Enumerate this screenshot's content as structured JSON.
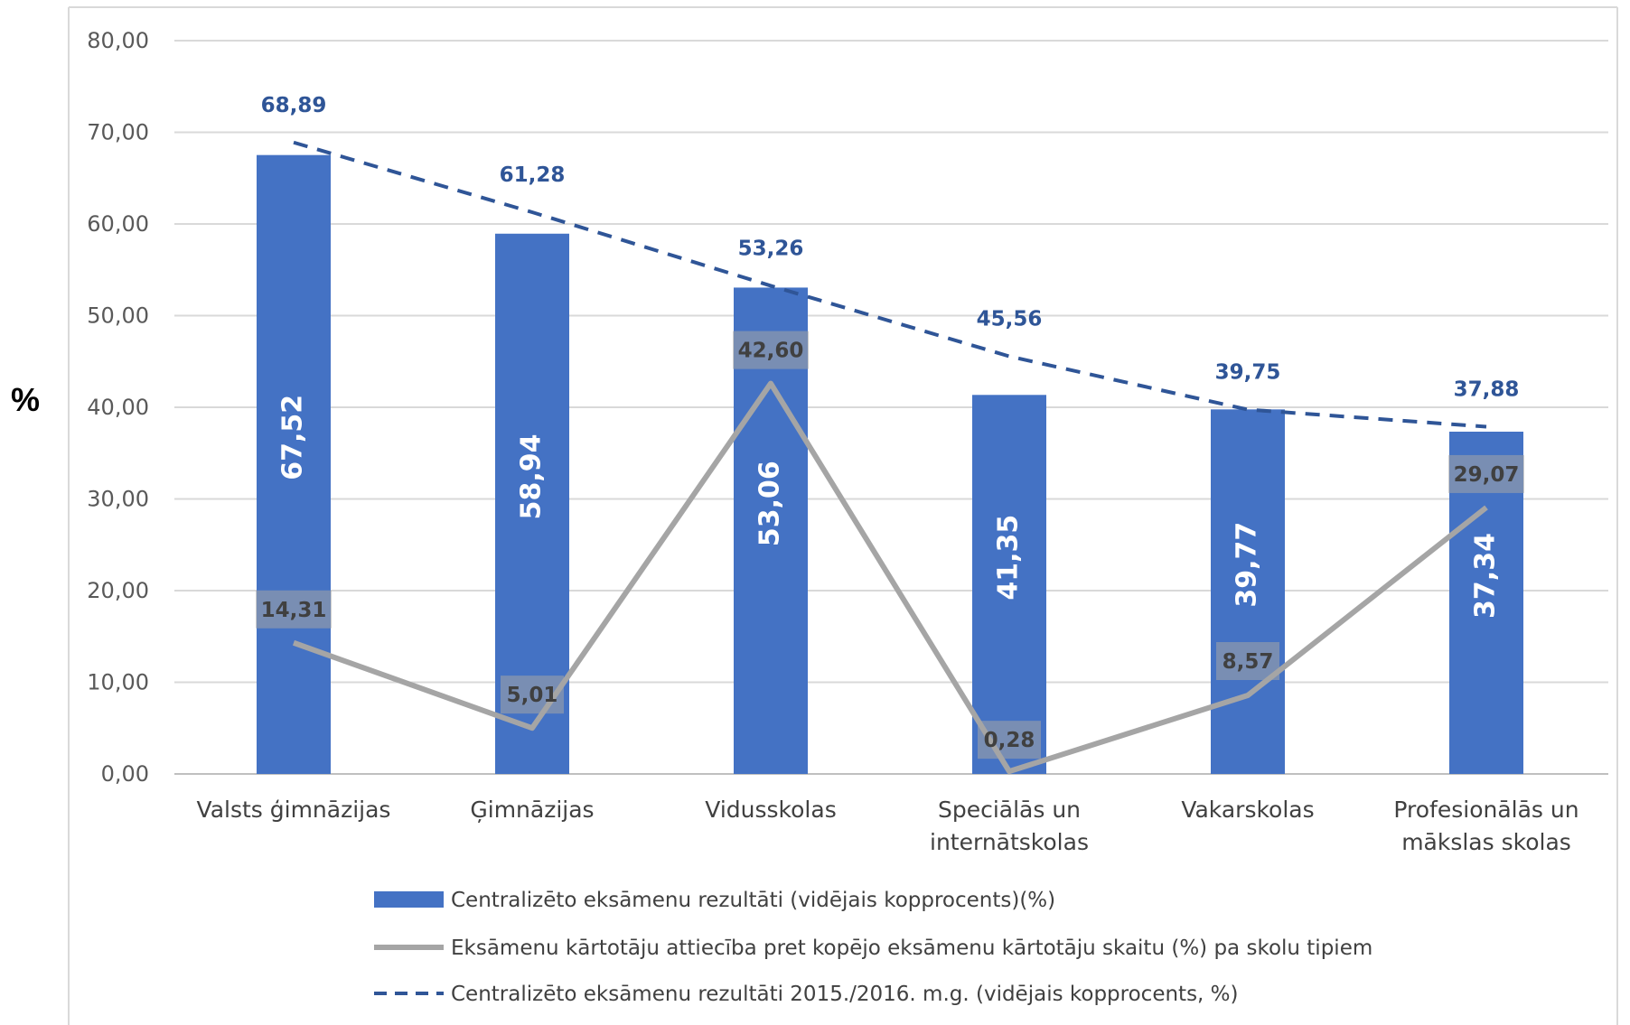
{
  "chart_data": {
    "type": "bar",
    "ylabel": "%",
    "ylim": [
      0,
      80
    ],
    "yticks": [
      "0,00",
      "10,00",
      "20,00",
      "30,00",
      "40,00",
      "50,00",
      "60,00",
      "70,00",
      "80,00"
    ],
    "grid": true,
    "legend_position": "bottom",
    "categories": [
      [
        "Valsts ģimnāzijas"
      ],
      [
        "Ģimnāzijas"
      ],
      [
        "Vidusskolas"
      ],
      [
        "Speciālās un",
        "internātskolas"
      ],
      [
        "Vakarskolas"
      ],
      [
        "Profesionālās un",
        "mākslas skolas"
      ]
    ],
    "series": [
      {
        "name": "Centralizēto eksāmenu rezultāti (vidējais kopprocents)(%)",
        "kind": "bar",
        "color": "#4472C4",
        "values": [
          67.52,
          58.94,
          53.06,
          41.35,
          39.77,
          37.34
        ],
        "labels": [
          "67,52",
          "58,94",
          "53,06",
          "41,35",
          "39,77",
          "37,34"
        ]
      },
      {
        "name": "Eksāmenu kārtotāju attiecība pret kopējo eksāmenu kārtotāju skaitu (%) pa skolu tipiem",
        "kind": "line",
        "color": "#A5A5A5",
        "values": [
          14.31,
          5.01,
          42.6,
          0.28,
          8.57,
          29.07
        ],
        "labels": [
          "14,31",
          "5,01",
          "42,60",
          "0,28",
          "8,57",
          "29,07"
        ]
      },
      {
        "name": "Centralizēto eksāmenu rezultāti 2015./2016. m.g. (vidējais kopprocents, %)",
        "kind": "dashed-line",
        "color": "#2F5597",
        "values": [
          68.89,
          61.28,
          53.26,
          45.56,
          39.75,
          37.88
        ],
        "labels": [
          "68,89",
          "61,28",
          "53,26",
          "45,56",
          "39,75",
          "37,88"
        ]
      }
    ]
  }
}
